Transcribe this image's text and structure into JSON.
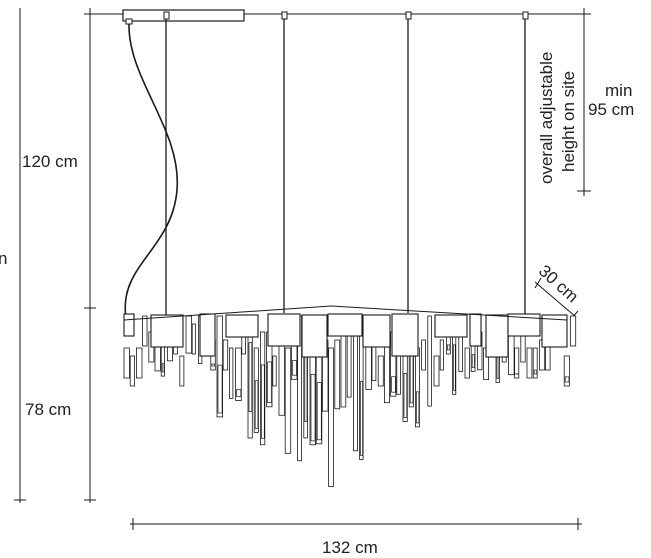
{
  "labels": {
    "total_height_cut": "n",
    "cable_length": "120 cm",
    "body_height": "78 cm",
    "width": "132 cm",
    "depth": "30 cm",
    "adjustable_line1": "overall adjustable",
    "adjustable_line2": "height on site",
    "min_line1": "min",
    "min_line2": "95 cm"
  },
  "colors": {
    "line": "#1a1a1a",
    "text": "#222222"
  }
}
